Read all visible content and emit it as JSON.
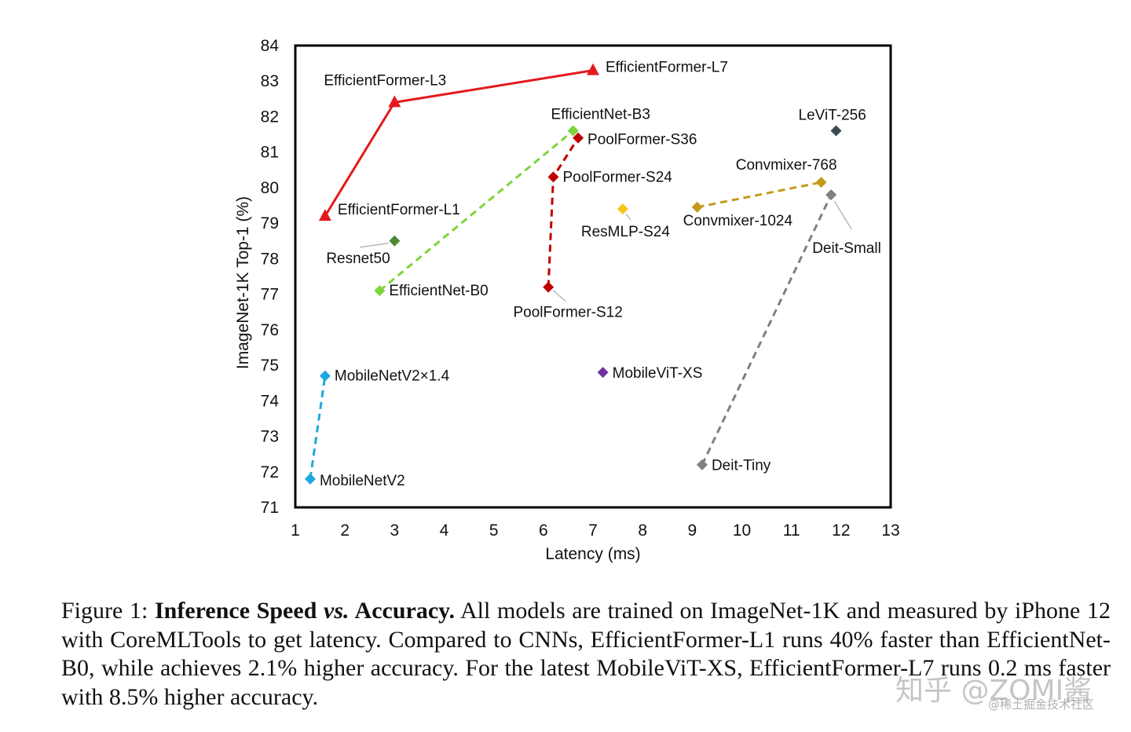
{
  "chart_data": {
    "type": "scatter",
    "xlabel": "Latency (ms)",
    "ylabel": "ImageNet-1K Top-1 (%)",
    "xlim": [
      1,
      13
    ],
    "ylim": [
      71,
      84
    ],
    "xticks": [
      1,
      2,
      3,
      4,
      5,
      6,
      7,
      8,
      9,
      10,
      11,
      12,
      13
    ],
    "yticks": [
      71,
      72,
      73,
      74,
      75,
      76,
      77,
      78,
      79,
      80,
      81,
      82,
      83,
      84
    ],
    "series": [
      {
        "name": "EfficientFormer",
        "color": "#e31a1c",
        "marker": "triangle",
        "line": "solid",
        "points": [
          {
            "label": "EfficientFormer-L1",
            "x": 1.6,
            "y": 79.2
          },
          {
            "label": "EfficientFormer-L3",
            "x": 3.0,
            "y": 82.4
          },
          {
            "label": "EfficientFormer-L7",
            "x": 7.0,
            "y": 83.3
          }
        ]
      },
      {
        "name": "EfficientNet",
        "color": "#7ed43c",
        "marker": "diamond",
        "line": "dashed",
        "points": [
          {
            "label": "EfficientNet-B0",
            "x": 2.7,
            "y": 77.1
          },
          {
            "label": "EfficientNet-B3",
            "x": 6.6,
            "y": 81.6
          }
        ]
      },
      {
        "name": "PoolFormer",
        "color": "#c00000",
        "marker": "diamond",
        "line": "dashed",
        "points": [
          {
            "label": "PoolFormer-S12",
            "x": 6.1,
            "y": 77.2
          },
          {
            "label": "PoolFormer-S24",
            "x": 6.2,
            "y": 80.3
          },
          {
            "label": "PoolFormer-S36",
            "x": 6.7,
            "y": 81.4
          }
        ]
      },
      {
        "name": "MobileNetV2",
        "color": "#1fa8e0",
        "marker": "diamond",
        "line": "dashed",
        "points": [
          {
            "label": "MobileNetV2",
            "x": 1.3,
            "y": 71.8
          },
          {
            "label": "MobileNetV2×1.4",
            "x": 1.6,
            "y": 74.7
          }
        ]
      },
      {
        "name": "Convmixer",
        "color": "#c49a1c",
        "marker": "diamond",
        "line": "dashed",
        "points": [
          {
            "label": "Convmixer-1024",
            "x": 9.1,
            "y": 79.45
          },
          {
            "label": "Convmixer-768",
            "x": 11.6,
            "y": 80.15
          }
        ]
      },
      {
        "name": "DeiT",
        "color": "#808080",
        "marker": "diamond",
        "line": "dashed",
        "points": [
          {
            "label": "Deit-Tiny",
            "x": 9.2,
            "y": 72.2
          },
          {
            "label": "Deit-Small",
            "x": 11.8,
            "y": 79.8
          }
        ]
      },
      {
        "name": "Resnet50",
        "color": "#4e8a34",
        "marker": "diamond",
        "line": "none",
        "points": [
          {
            "label": "Resnet50",
            "x": 3.0,
            "y": 78.5
          }
        ]
      },
      {
        "name": "ResMLP-S24",
        "color": "#f5c518",
        "marker": "diamond",
        "line": "none",
        "points": [
          {
            "label": "ResMLP-S24",
            "x": 7.6,
            "y": 79.4
          }
        ]
      },
      {
        "name": "MobileViT-XS",
        "color": "#7030a0",
        "marker": "diamond",
        "line": "none",
        "points": [
          {
            "label": "MobileViT-XS",
            "x": 7.2,
            "y": 74.8
          }
        ]
      },
      {
        "name": "LeViT-256",
        "color": "#3a4a55",
        "marker": "diamond",
        "line": "none",
        "points": [
          {
            "label": "LeViT-256",
            "x": 11.9,
            "y": 81.6
          }
        ]
      }
    ]
  },
  "caption": {
    "prefix": "Figure 1: ",
    "bold": "Inference Speed ",
    "bold_italic": "vs.",
    "bold2": " Accuracy.",
    "body": " All models are trained on ImageNet-1K and measured by iPhone 12 with CoreMLTools to get latency. Compared to CNNs, EfficientFormer-L1 runs 40% faster than EfficientNet-B0, while achieves 2.1% higher accuracy. For the latest MobileViT-XS, EfficientFormer-L7 runs 0.2 ms faster with 8.5% higher accuracy."
  },
  "watermark": {
    "main": "知乎 @ZOMI酱",
    "sub": "@稀土掘金技术社区"
  }
}
